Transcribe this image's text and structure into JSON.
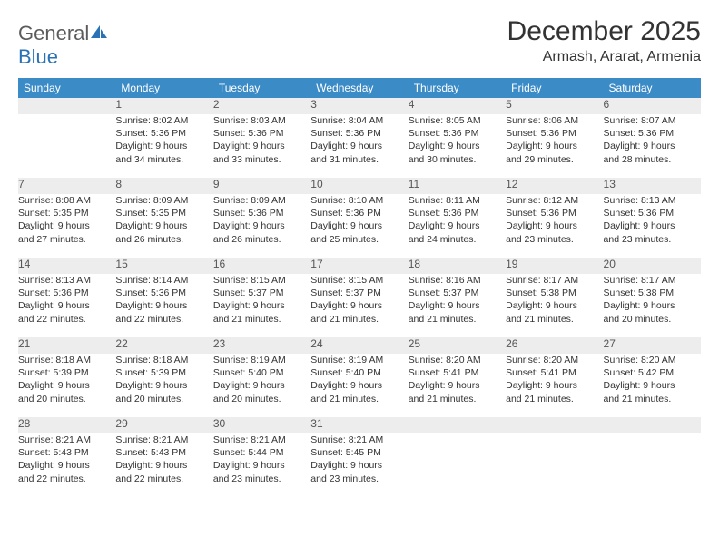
{
  "logo": {
    "word1": "General",
    "word2": "Blue"
  },
  "title": "December 2025",
  "location": "Armash, Ararat, Armenia",
  "colors": {
    "header_bg": "#3b8bc7",
    "header_text": "#ffffff",
    "daynum_bg": "#ededed",
    "row_border": "#2a72b5",
    "logo_gray": "#5b5b5b",
    "logo_blue": "#2a72b5"
  },
  "day_labels": [
    "Sunday",
    "Monday",
    "Tuesday",
    "Wednesday",
    "Thursday",
    "Friday",
    "Saturday"
  ],
  "weeks": [
    {
      "nums": [
        "",
        "1",
        "2",
        "3",
        "4",
        "5",
        "6"
      ],
      "sunrise": [
        "",
        "Sunrise: 8:02 AM",
        "Sunrise: 8:03 AM",
        "Sunrise: 8:04 AM",
        "Sunrise: 8:05 AM",
        "Sunrise: 8:06 AM",
        "Sunrise: 8:07 AM"
      ],
      "sunset": [
        "",
        "Sunset: 5:36 PM",
        "Sunset: 5:36 PM",
        "Sunset: 5:36 PM",
        "Sunset: 5:36 PM",
        "Sunset: 5:36 PM",
        "Sunset: 5:36 PM"
      ],
      "day1": [
        "",
        "Daylight: 9 hours",
        "Daylight: 9 hours",
        "Daylight: 9 hours",
        "Daylight: 9 hours",
        "Daylight: 9 hours",
        "Daylight: 9 hours"
      ],
      "day2": [
        "",
        "and 34 minutes.",
        "and 33 minutes.",
        "and 31 minutes.",
        "and 30 minutes.",
        "and 29 minutes.",
        "and 28 minutes."
      ]
    },
    {
      "nums": [
        "7",
        "8",
        "9",
        "10",
        "11",
        "12",
        "13"
      ],
      "sunrise": [
        "Sunrise: 8:08 AM",
        "Sunrise: 8:09 AM",
        "Sunrise: 8:09 AM",
        "Sunrise: 8:10 AM",
        "Sunrise: 8:11 AM",
        "Sunrise: 8:12 AM",
        "Sunrise: 8:13 AM"
      ],
      "sunset": [
        "Sunset: 5:35 PM",
        "Sunset: 5:35 PM",
        "Sunset: 5:36 PM",
        "Sunset: 5:36 PM",
        "Sunset: 5:36 PM",
        "Sunset: 5:36 PM",
        "Sunset: 5:36 PM"
      ],
      "day1": [
        "Daylight: 9 hours",
        "Daylight: 9 hours",
        "Daylight: 9 hours",
        "Daylight: 9 hours",
        "Daylight: 9 hours",
        "Daylight: 9 hours",
        "Daylight: 9 hours"
      ],
      "day2": [
        "and 27 minutes.",
        "and 26 minutes.",
        "and 26 minutes.",
        "and 25 minutes.",
        "and 24 minutes.",
        "and 23 minutes.",
        "and 23 minutes."
      ]
    },
    {
      "nums": [
        "14",
        "15",
        "16",
        "17",
        "18",
        "19",
        "20"
      ],
      "sunrise": [
        "Sunrise: 8:13 AM",
        "Sunrise: 8:14 AM",
        "Sunrise: 8:15 AM",
        "Sunrise: 8:15 AM",
        "Sunrise: 8:16 AM",
        "Sunrise: 8:17 AM",
        "Sunrise: 8:17 AM"
      ],
      "sunset": [
        "Sunset: 5:36 PM",
        "Sunset: 5:36 PM",
        "Sunset: 5:37 PM",
        "Sunset: 5:37 PM",
        "Sunset: 5:37 PM",
        "Sunset: 5:38 PM",
        "Sunset: 5:38 PM"
      ],
      "day1": [
        "Daylight: 9 hours",
        "Daylight: 9 hours",
        "Daylight: 9 hours",
        "Daylight: 9 hours",
        "Daylight: 9 hours",
        "Daylight: 9 hours",
        "Daylight: 9 hours"
      ],
      "day2": [
        "and 22 minutes.",
        "and 22 minutes.",
        "and 21 minutes.",
        "and 21 minutes.",
        "and 21 minutes.",
        "and 21 minutes.",
        "and 20 minutes."
      ]
    },
    {
      "nums": [
        "21",
        "22",
        "23",
        "24",
        "25",
        "26",
        "27"
      ],
      "sunrise": [
        "Sunrise: 8:18 AM",
        "Sunrise: 8:18 AM",
        "Sunrise: 8:19 AM",
        "Sunrise: 8:19 AM",
        "Sunrise: 8:20 AM",
        "Sunrise: 8:20 AM",
        "Sunrise: 8:20 AM"
      ],
      "sunset": [
        "Sunset: 5:39 PM",
        "Sunset: 5:39 PM",
        "Sunset: 5:40 PM",
        "Sunset: 5:40 PM",
        "Sunset: 5:41 PM",
        "Sunset: 5:41 PM",
        "Sunset: 5:42 PM"
      ],
      "day1": [
        "Daylight: 9 hours",
        "Daylight: 9 hours",
        "Daylight: 9 hours",
        "Daylight: 9 hours",
        "Daylight: 9 hours",
        "Daylight: 9 hours",
        "Daylight: 9 hours"
      ],
      "day2": [
        "and 20 minutes.",
        "and 20 minutes.",
        "and 20 minutes.",
        "and 21 minutes.",
        "and 21 minutes.",
        "and 21 minutes.",
        "and 21 minutes."
      ]
    },
    {
      "nums": [
        "28",
        "29",
        "30",
        "31",
        "",
        "",
        ""
      ],
      "sunrise": [
        "Sunrise: 8:21 AM",
        "Sunrise: 8:21 AM",
        "Sunrise: 8:21 AM",
        "Sunrise: 8:21 AM",
        "",
        "",
        ""
      ],
      "sunset": [
        "Sunset: 5:43 PM",
        "Sunset: 5:43 PM",
        "Sunset: 5:44 PM",
        "Sunset: 5:45 PM",
        "",
        "",
        ""
      ],
      "day1": [
        "Daylight: 9 hours",
        "Daylight: 9 hours",
        "Daylight: 9 hours",
        "Daylight: 9 hours",
        "",
        "",
        ""
      ],
      "day2": [
        "and 22 minutes.",
        "and 22 minutes.",
        "and 23 minutes.",
        "and 23 minutes.",
        "",
        "",
        ""
      ]
    }
  ]
}
